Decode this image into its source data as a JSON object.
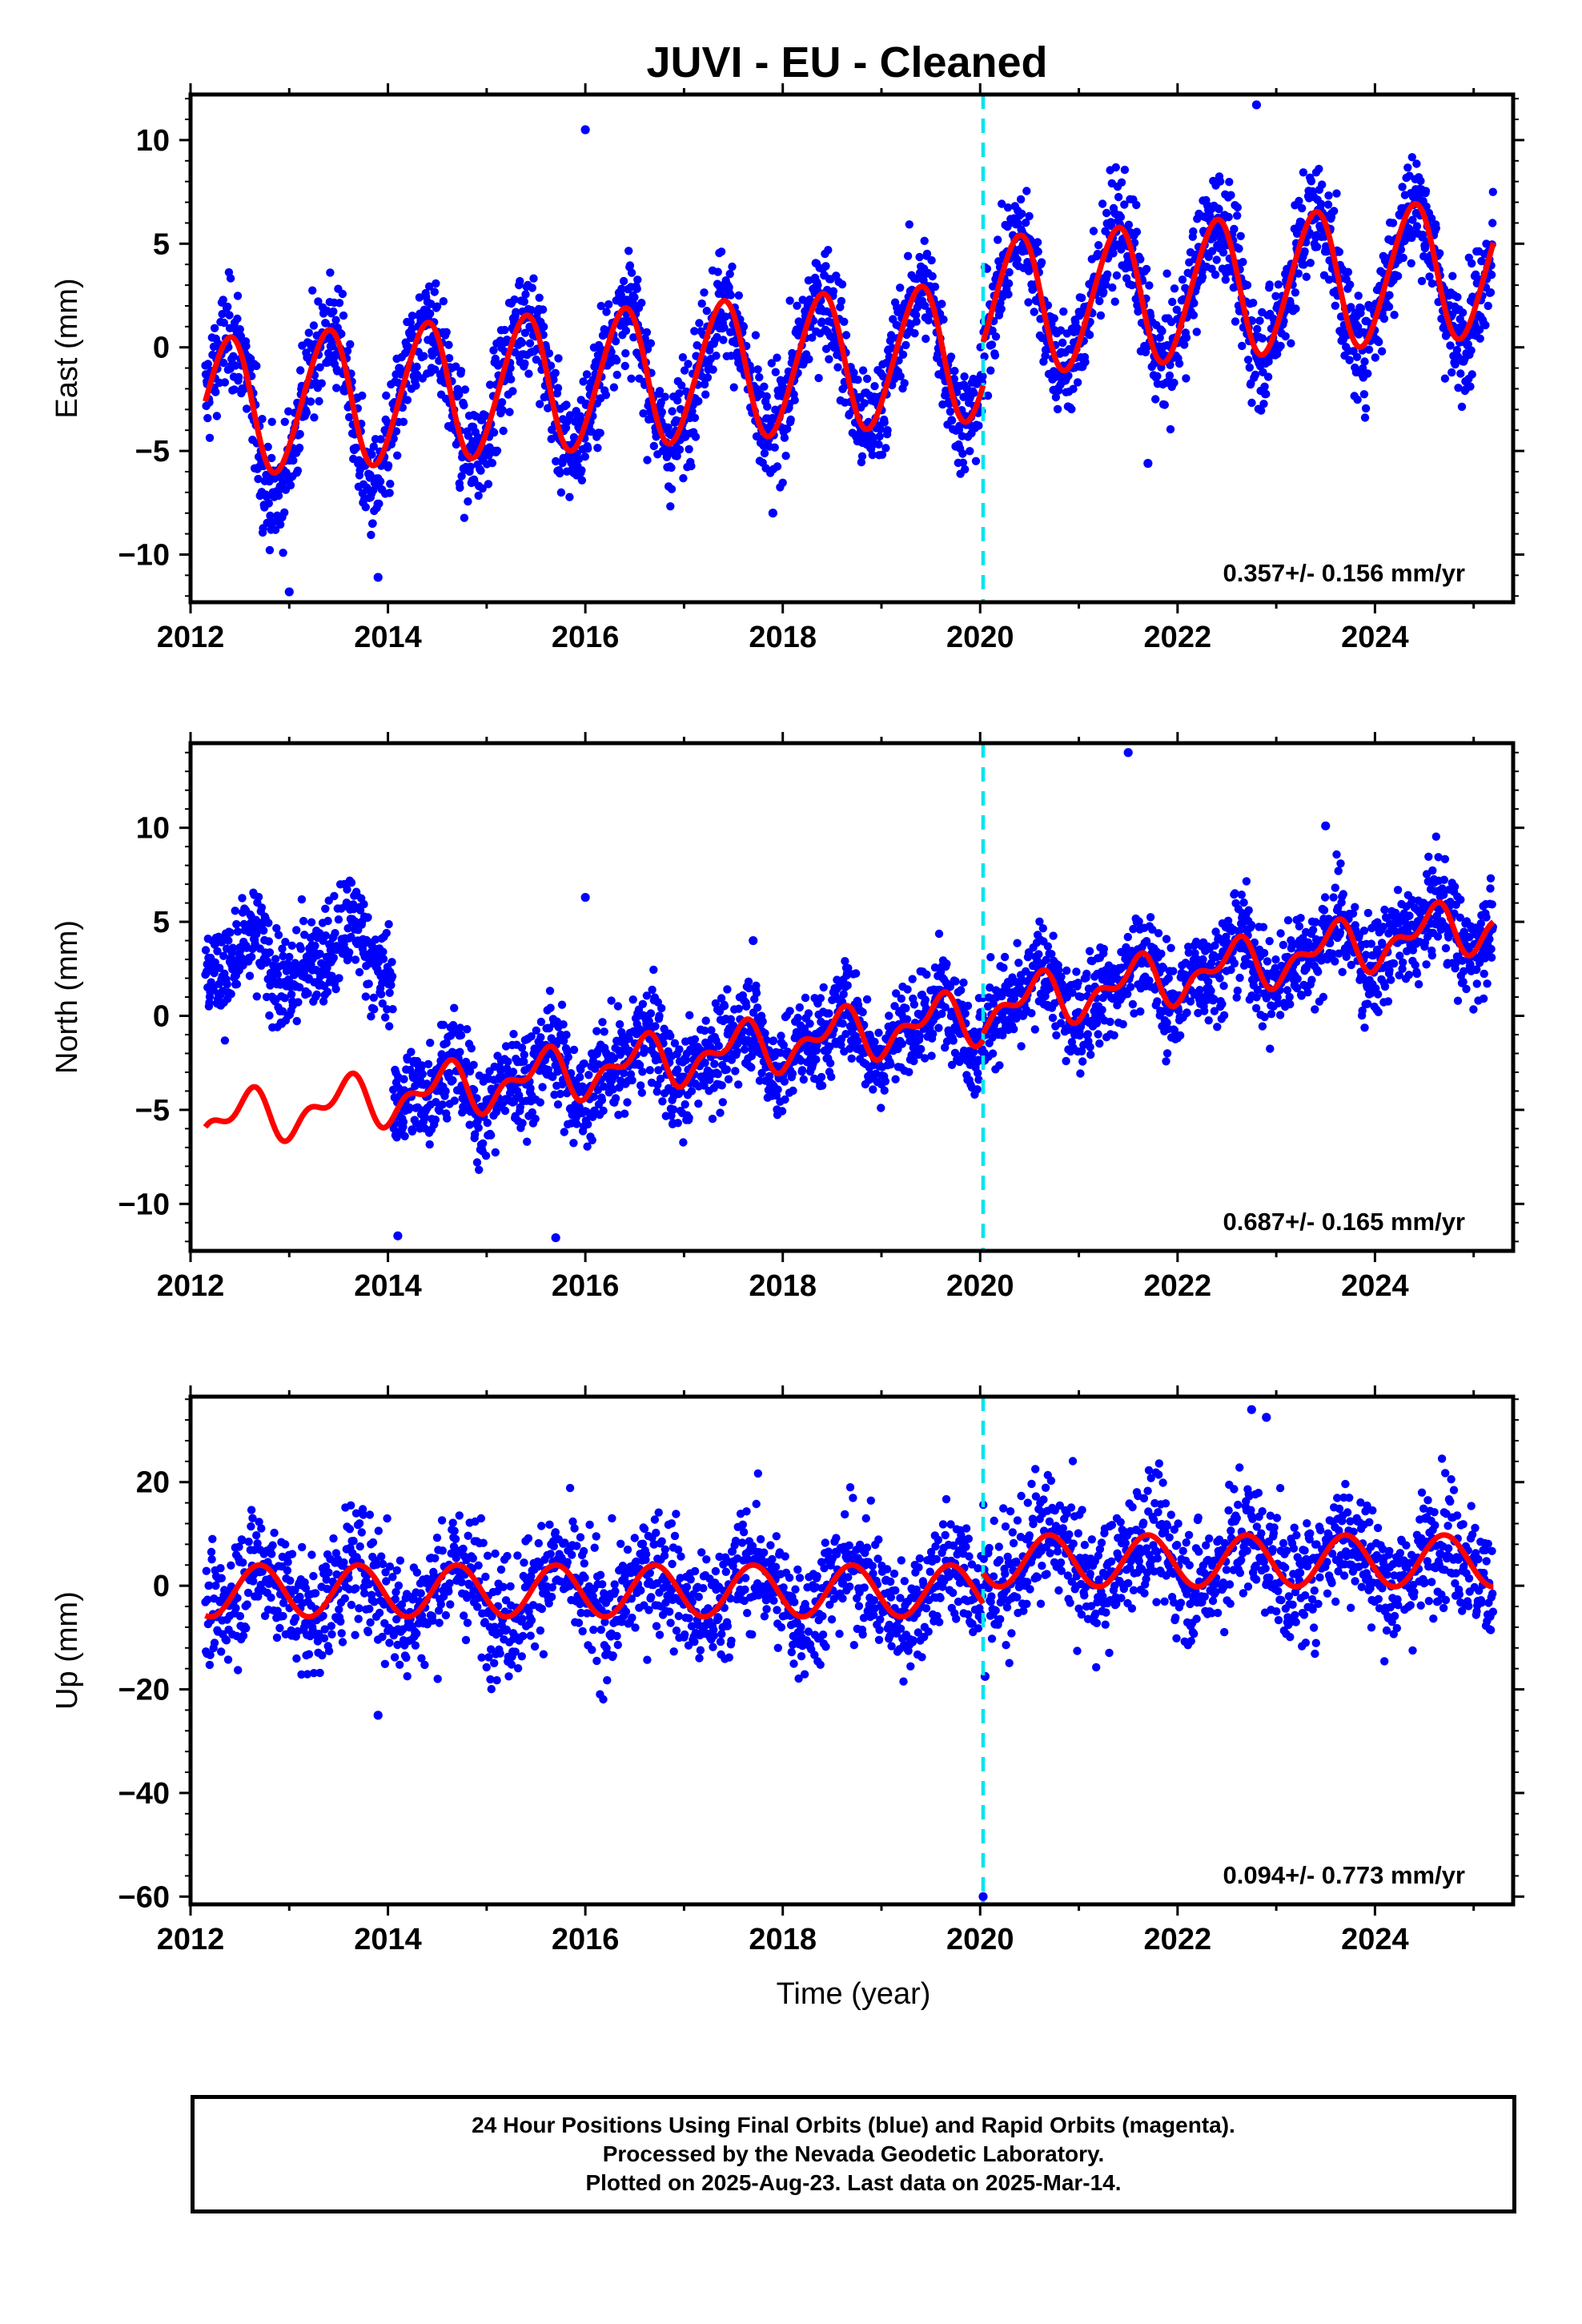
{
  "title": "JUVI  - EU - Cleaned",
  "xlabel": "Time (year)",
  "footer": {
    "line1": "24 Hour Positions Using Final Orbits (blue) and Rapid Orbits (magenta).",
    "line2": "Processed by the Nevada Geodetic Laboratory.",
    "line3": "Plotted on 2025-Aug-23. Last data on 2025-Mar-14."
  },
  "colors": {
    "points": "#0000ff",
    "model": "#ff0000",
    "break_line": "#00e5ee",
    "frame": "#000000"
  },
  "chart_data": [
    {
      "type": "scatter",
      "ylabel": "East (mm)",
      "xlim": [
        2012,
        2025.4
      ],
      "ylim": [
        -12.3,
        12.2
      ],
      "xticks": [
        2012,
        2014,
        2016,
        2018,
        2020,
        2022,
        2024
      ],
      "yticks": [
        10,
        5,
        0,
        -5,
        -10
      ],
      "ytick_labels": [
        "10",
        "5",
        "0",
        "−5",
        "−10"
      ],
      "rate_label": "0.357+/- 0.156 mm/yr",
      "break_at": 2020.03,
      "model_pieces": [
        {
          "from": 2012.15,
          "to": 2020.03,
          "offset": -3.0,
          "trend": 0.35,
          "t0": 2012.0,
          "amp": 3.3,
          "phase_year": 2012.38,
          "amp2": 0.3
        },
        {
          "from": 2020.03,
          "to": 2025.2,
          "offset": 1.9,
          "trend": 0.38,
          "t0": 2020.0,
          "amp": 3.3,
          "phase_year": 2020.38,
          "amp2": 0.3
        }
      ],
      "outliers": [
        [
          2016.0,
          10.5
        ],
        [
          2022.8,
          11.7
        ],
        [
          2013.0,
          -11.8
        ],
        [
          2013.9,
          -11.1
        ],
        [
          2021.7,
          -5.6
        ],
        [
          2017.9,
          -8.0
        ]
      ]
    },
    {
      "type": "scatter",
      "ylabel": "North (mm)",
      "xlim": [
        2012,
        2025.4
      ],
      "ylim": [
        -12.5,
        14.5
      ],
      "xticks": [
        2012,
        2014,
        2016,
        2018,
        2020,
        2022,
        2024
      ],
      "yticks": [
        10,
        5,
        0,
        -5,
        -10
      ],
      "ytick_labels": [
        "10",
        "5",
        "0",
        "−5",
        "−10"
      ],
      "rate_label": "0.687+/- 0.165 mm/yr",
      "break_at": 2020.03,
      "model_pieces": [
        {
          "from": 2012.15,
          "to": 2020.03,
          "offset": -5.8,
          "trend": 0.72,
          "t0": 2012.0,
          "amp": 1.1,
          "phase_year": 2012.55,
          "amp2": 0.7
        },
        {
          "from": 2020.03,
          "to": 2025.2,
          "offset": 0.3,
          "trend": 0.9,
          "t0": 2020.0,
          "amp": 1.1,
          "phase_year": 2020.55,
          "amp2": 0.7
        }
      ],
      "data_offset_2012_2014": 8.0,
      "outliers": [
        [
          2021.5,
          14.0
        ],
        [
          2016.0,
          6.3
        ],
        [
          2017.7,
          4.0
        ],
        [
          2014.1,
          -11.7
        ],
        [
          2015.7,
          -11.8
        ],
        [
          2023.5,
          10.1
        ]
      ]
    },
    {
      "type": "scatter",
      "ylabel": "Up (mm)",
      "xlim": [
        2012,
        2025.4
      ],
      "ylim": [
        -61.5,
        36.5
      ],
      "xticks": [
        2012,
        2014,
        2016,
        2018,
        2020,
        2022,
        2024
      ],
      "yticks": [
        20,
        0,
        -20,
        -40,
        -60
      ],
      "ytick_labels": [
        "20",
        "0",
        "−20",
        "−40",
        "−60"
      ],
      "rate_label": "0.094+/- 0.773 mm/yr",
      "break_at": 2020.03,
      "model_pieces": [
        {
          "from": 2012.15,
          "to": 2020.03,
          "offset": -1.0,
          "trend": 0.0,
          "t0": 2012.0,
          "amp": 5.0,
          "phase_year": 2012.7,
          "amp2": 0.0
        },
        {
          "from": 2020.03,
          "to": 2025.2,
          "offset": 4.8,
          "trend": 0.0,
          "t0": 2020.0,
          "amp": 5.0,
          "phase_year": 2020.7,
          "amp2": 0.0
        }
      ],
      "outliers": [
        [
          2022.75,
          34.0
        ],
        [
          2022.9,
          32.5
        ],
        [
          2020.03,
          -60.0
        ],
        [
          2013.9,
          -25.0
        ],
        [
          2020.05,
          -17.5
        ]
      ]
    }
  ]
}
